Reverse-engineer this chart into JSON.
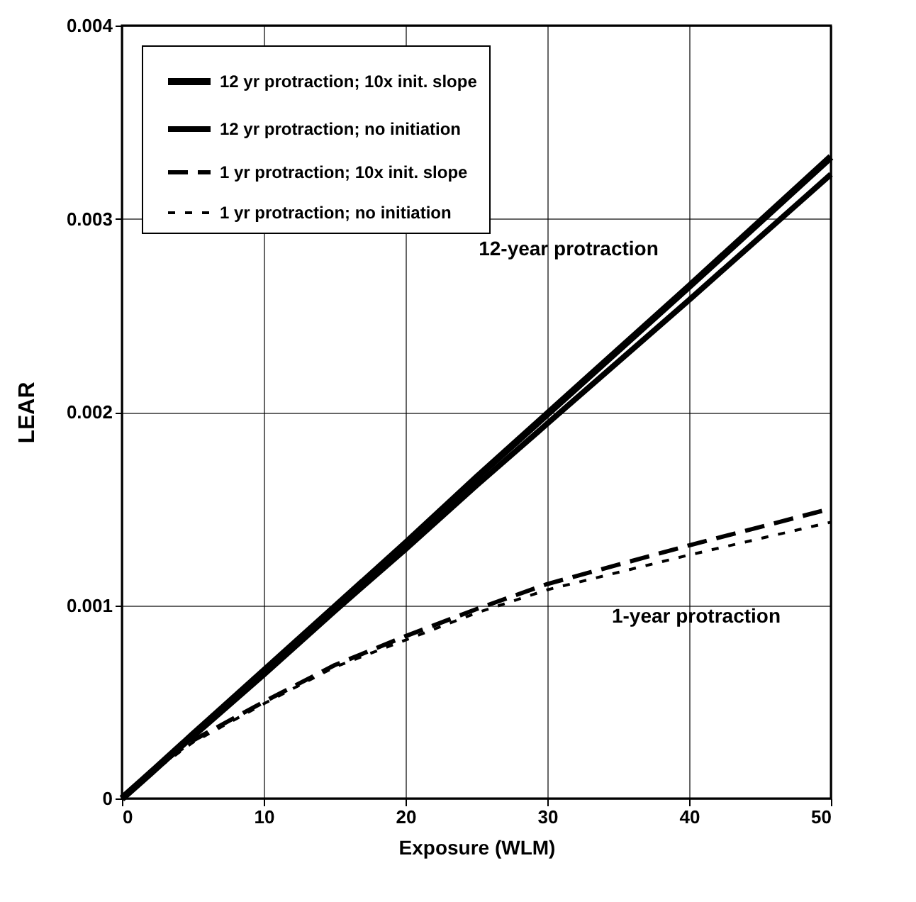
{
  "chart_data": {
    "type": "line",
    "xlabel": "Exposure (WLM)",
    "ylabel": "LEAR",
    "x": [
      0,
      2,
      5,
      10,
      15,
      20,
      25,
      30,
      40,
      50
    ],
    "series": [
      {
        "name": "12 yr protraction; 10x init. slope",
        "color": "#000000",
        "line_style": "solid",
        "values": [
          0,
          0.00013,
          0.00033,
          0.00066,
          0.00099,
          0.00132,
          0.00166,
          0.00199,
          0.00265,
          0.00332
        ]
      },
      {
        "name": "12 yr protraction; no initiation",
        "color": "#000000",
        "line_style": "solid",
        "values": [
          0,
          0.00013,
          0.00032,
          0.00064,
          0.00097,
          0.00129,
          0.00162,
          0.00194,
          0.00258,
          0.00323
        ]
      },
      {
        "name": "1 yr protraction; 10x init. slope",
        "color": "#000000",
        "line_style": "dashed",
        "values": [
          0,
          0.00014,
          0.0003,
          0.0005,
          0.00069,
          0.00084,
          0.00098,
          0.00111,
          0.00131,
          0.0015
        ]
      },
      {
        "name": "1 yr protraction; no initiation",
        "color": "#000000",
        "line_style": "dashed",
        "values": [
          0,
          0.00013,
          0.00029,
          0.00049,
          0.00068,
          0.00082,
          0.00096,
          0.00108,
          0.00126,
          0.00143
        ]
      }
    ],
    "xlim": [
      0,
      50
    ],
    "xticks": [
      0,
      10,
      20,
      30,
      40,
      50
    ],
    "ylim": [
      0,
      0.004
    ],
    "yticks": [
      0,
      0.001,
      0.002,
      0.003,
      0.004
    ],
    "grid": true,
    "legend": "top left",
    "marker": "none",
    "annotations": [
      "12-year protraction",
      "1-year protraction"
    ]
  }
}
